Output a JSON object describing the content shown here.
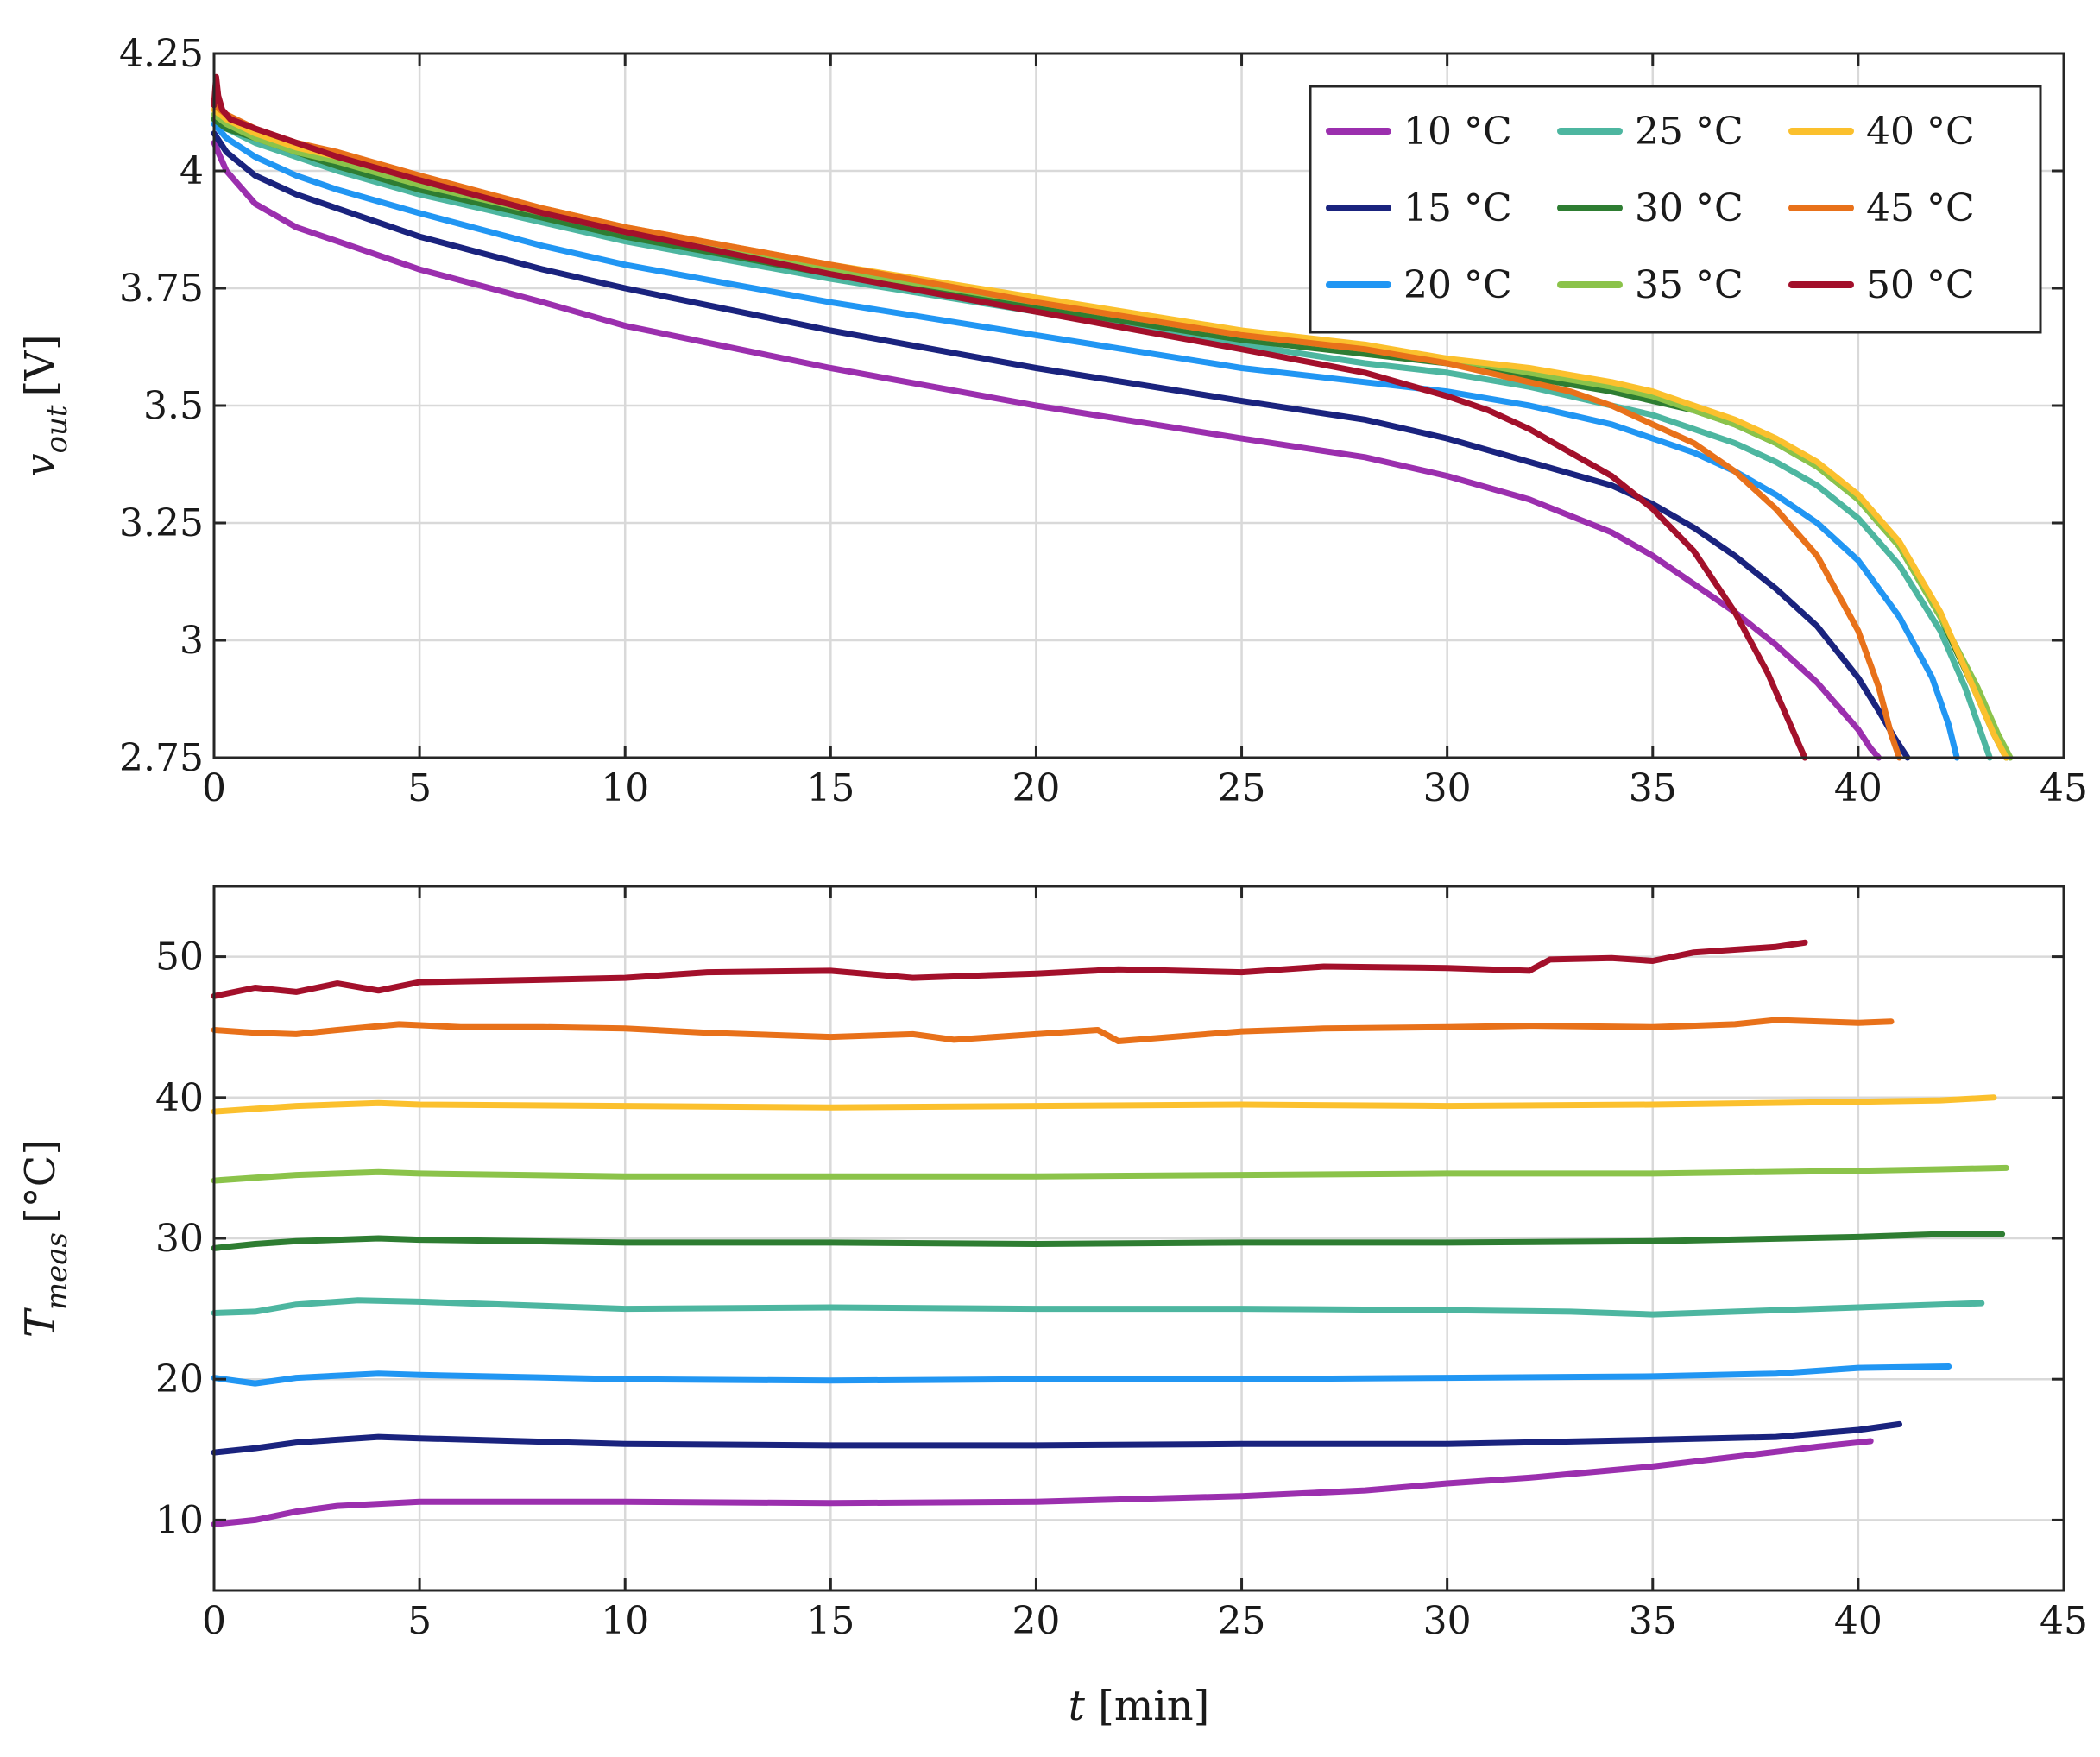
{
  "chart_data": [
    {
      "type": "line",
      "id": "voltage",
      "xlabel": "t [min]",
      "ylabel": "v_out [V]",
      "ylabel_main": "v",
      "ylabel_sub": "out",
      "ylabel_unit": "[V]",
      "xlim": [
        0,
        45
      ],
      "ylim": [
        2.75,
        4.25
      ],
      "xticks": [
        0,
        5,
        10,
        15,
        20,
        25,
        30,
        35,
        40,
        45
      ],
      "xtick_labels": [
        "0",
        "5",
        "10",
        "15",
        "20",
        "25",
        "30",
        "35",
        "40",
        "45"
      ],
      "yticks": [
        2.75,
        3.0,
        3.25,
        3.5,
        3.75,
        4.0,
        4.25
      ],
      "ytick_labels": [
        "2.75",
        "3",
        "3.25",
        "3.5",
        "3.75",
        "4",
        "4.25"
      ],
      "grid": true,
      "legend": {
        "position": "top-right",
        "columns": 3,
        "entries": [
          "10 °C",
          "15 °C",
          "20 °C",
          "25 °C",
          "30 °C",
          "35 °C",
          "40 °C",
          "45 °C",
          "50 °C"
        ]
      },
      "series": [
        {
          "name": "10 °C",
          "color": "#9B2FAE",
          "x": [
            0,
            0.3,
            1,
            2,
            3,
            5,
            8,
            10,
            15,
            20,
            25,
            28,
            30,
            32,
            34,
            35,
            36,
            37,
            38,
            39,
            39.5,
            40,
            40.3,
            40.5
          ],
          "y": [
            4.06,
            4.0,
            3.93,
            3.88,
            3.85,
            3.79,
            3.72,
            3.67,
            3.58,
            3.5,
            3.43,
            3.39,
            3.35,
            3.3,
            3.23,
            3.18,
            3.12,
            3.06,
            2.99,
            2.91,
            2.86,
            2.81,
            2.77,
            2.75
          ]
        },
        {
          "name": "15 °C",
          "color": "#1A237E",
          "x": [
            0,
            0.3,
            1,
            2,
            3,
            5,
            8,
            10,
            15,
            20,
            25,
            28,
            30,
            32,
            34,
            35,
            36,
            37,
            38,
            39,
            40,
            40.5,
            40.9,
            41.2
          ],
          "y": [
            4.08,
            4.04,
            3.99,
            3.95,
            3.92,
            3.86,
            3.79,
            3.75,
            3.66,
            3.58,
            3.51,
            3.47,
            3.43,
            3.38,
            3.33,
            3.29,
            3.24,
            3.18,
            3.11,
            3.03,
            2.92,
            2.85,
            2.79,
            2.75
          ]
        },
        {
          "name": "20 °C",
          "color": "#2196F3",
          "x": [
            0,
            0.3,
            1,
            2,
            3,
            5,
            8,
            10,
            15,
            20,
            25,
            28,
            30,
            32,
            34,
            35,
            36,
            37,
            38,
            39,
            40,
            41,
            41.8,
            42.2,
            42.4
          ],
          "y": [
            4.1,
            4.07,
            4.03,
            3.99,
            3.96,
            3.91,
            3.84,
            3.8,
            3.72,
            3.65,
            3.58,
            3.55,
            3.53,
            3.5,
            3.46,
            3.43,
            3.4,
            3.36,
            3.31,
            3.25,
            3.17,
            3.05,
            2.92,
            2.82,
            2.75
          ]
        },
        {
          "name": "25 °C",
          "color": "#4DB6A0",
          "x": [
            0,
            0.3,
            1,
            2,
            3,
            5,
            8,
            10,
            15,
            20,
            25,
            28,
            30,
            32,
            34,
            35,
            36,
            37,
            38,
            39,
            40,
            41,
            42,
            42.6,
            43.0,
            43.2
          ],
          "y": [
            4.11,
            4.09,
            4.06,
            4.03,
            4.0,
            3.95,
            3.89,
            3.85,
            3.77,
            3.7,
            3.63,
            3.59,
            3.57,
            3.54,
            3.5,
            3.48,
            3.45,
            3.42,
            3.38,
            3.33,
            3.26,
            3.16,
            3.02,
            2.9,
            2.8,
            2.75
          ]
        },
        {
          "name": "30 °C",
          "color": "#2E7D32",
          "x": [
            0,
            0.3,
            1,
            2,
            3,
            5,
            8,
            10,
            15,
            20,
            25,
            28,
            30,
            32,
            34,
            35,
            36,
            37,
            38,
            39,
            40,
            41,
            42,
            42.8,
            43.3,
            43.6
          ],
          "y": [
            4.11,
            4.09,
            4.07,
            4.04,
            4.01,
            3.96,
            3.9,
            3.86,
            3.78,
            3.71,
            3.64,
            3.61,
            3.59,
            3.56,
            3.53,
            3.51,
            3.49,
            3.46,
            3.42,
            3.37,
            3.3,
            3.2,
            3.05,
            2.9,
            2.8,
            2.75
          ]
        },
        {
          "name": "35 °C",
          "color": "#8BC34A",
          "x": [
            0,
            0.3,
            1,
            2,
            3,
            5,
            8,
            10,
            15,
            20,
            25,
            28,
            30,
            32,
            34,
            35,
            36,
            37,
            38,
            39,
            40,
            41,
            42,
            42.9,
            43.4,
            43.7
          ],
          "y": [
            4.12,
            4.1,
            4.07,
            4.04,
            4.02,
            3.97,
            3.91,
            3.87,
            3.79,
            3.72,
            3.65,
            3.62,
            3.6,
            3.57,
            3.54,
            3.52,
            3.49,
            3.46,
            3.42,
            3.37,
            3.3,
            3.2,
            3.05,
            2.9,
            2.8,
            2.75
          ]
        },
        {
          "name": "40 °C",
          "color": "#FBC02D",
          "x": [
            0,
            0.3,
            1,
            2,
            3,
            5,
            8,
            10,
            15,
            20,
            25,
            28,
            30,
            32,
            34,
            35,
            36,
            37,
            38,
            39,
            40,
            41,
            42,
            42.8,
            43.3,
            43.6
          ],
          "y": [
            4.13,
            4.11,
            4.08,
            4.05,
            4.03,
            3.98,
            3.92,
            3.88,
            3.8,
            3.73,
            3.66,
            3.63,
            3.6,
            3.58,
            3.55,
            3.53,
            3.5,
            3.47,
            3.43,
            3.38,
            3.31,
            3.21,
            3.06,
            2.9,
            2.8,
            2.75
          ]
        },
        {
          "name": "45 °C",
          "color": "#E8711A",
          "x": [
            0,
            0.3,
            1,
            2,
            3,
            5,
            8,
            10,
            15,
            20,
            25,
            28,
            30,
            32,
            33,
            34,
            35,
            36,
            37,
            38,
            39,
            40,
            40.5,
            40.8,
            41.0
          ],
          "y": [
            4.14,
            4.12,
            4.09,
            4.06,
            4.04,
            3.99,
            3.92,
            3.88,
            3.8,
            3.72,
            3.65,
            3.62,
            3.59,
            3.55,
            3.53,
            3.5,
            3.46,
            3.42,
            3.36,
            3.28,
            3.18,
            3.02,
            2.9,
            2.8,
            2.75
          ]
        },
        {
          "name": "50 °C",
          "color": "#A3102B",
          "x": [
            0,
            0.05,
            0.1,
            0.2,
            0.4,
            1,
            2,
            3,
            5,
            8,
            10,
            15,
            20,
            25,
            28,
            30,
            31,
            32,
            33,
            34,
            35,
            36,
            37,
            37.8,
            38.3,
            38.7
          ],
          "y": [
            4.14,
            4.2,
            4.16,
            4.13,
            4.11,
            4.09,
            4.06,
            4.03,
            3.98,
            3.91,
            3.87,
            3.78,
            3.7,
            3.62,
            3.57,
            3.52,
            3.49,
            3.45,
            3.4,
            3.35,
            3.28,
            3.19,
            3.06,
            2.93,
            2.83,
            2.75
          ]
        }
      ]
    },
    {
      "type": "line",
      "id": "temperature",
      "xlabel": "t [min]",
      "ylabel": "T_meas [°C]",
      "ylabel_main": "T",
      "ylabel_sub": "meas",
      "ylabel_unit": "[°C]",
      "xlim": [
        0,
        45
      ],
      "ylim": [
        5,
        55
      ],
      "xticks": [
        0,
        5,
        10,
        15,
        20,
        25,
        30,
        35,
        40,
        45
      ],
      "xtick_labels": [
        "0",
        "5",
        "10",
        "15",
        "20",
        "25",
        "30",
        "35",
        "40",
        "45"
      ],
      "yticks": [
        10,
        20,
        30,
        40,
        50
      ],
      "ytick_labels": [
        "10",
        "20",
        "30",
        "40",
        "50"
      ],
      "grid": true,
      "series": [
        {
          "name": "10 °C",
          "color": "#9B2FAE",
          "x": [
            0,
            1,
            2,
            3,
            5,
            10,
            15,
            20,
            25,
            28,
            30,
            32,
            35,
            37,
            39,
            40.3
          ],
          "y": [
            9.7,
            10.0,
            10.6,
            11.0,
            11.3,
            11.3,
            11.2,
            11.3,
            11.7,
            12.1,
            12.6,
            13.0,
            13.8,
            14.5,
            15.2,
            15.6
          ]
        },
        {
          "name": "15 °C",
          "color": "#1A237E",
          "x": [
            0,
            1,
            2,
            4,
            5,
            10,
            15,
            20,
            25,
            30,
            35,
            38,
            40,
            41.0
          ],
          "y": [
            14.8,
            15.1,
            15.5,
            15.9,
            15.8,
            15.4,
            15.3,
            15.3,
            15.4,
            15.4,
            15.7,
            15.9,
            16.4,
            16.8
          ]
        },
        {
          "name": "20 °C",
          "color": "#2196F3",
          "x": [
            0,
            1,
            2,
            4,
            5,
            10,
            15,
            20,
            25,
            30,
            35,
            38,
            40,
            42.2
          ],
          "y": [
            20.1,
            19.7,
            20.1,
            20.4,
            20.3,
            20.0,
            19.9,
            20.0,
            20.0,
            20.1,
            20.2,
            20.4,
            20.8,
            20.9
          ]
        },
        {
          "name": "25 °C",
          "color": "#4DB6A0",
          "x": [
            0,
            1,
            2,
            3.5,
            5,
            10,
            15,
            20,
            25,
            30,
            33,
            35,
            37,
            40,
            43.0
          ],
          "y": [
            24.7,
            24.8,
            25.3,
            25.6,
            25.5,
            25.0,
            25.1,
            25.0,
            25.0,
            24.9,
            24.8,
            24.6,
            24.8,
            25.1,
            25.4
          ]
        },
        {
          "name": "30 °C",
          "color": "#2E7D32",
          "x": [
            0,
            1,
            2,
            4,
            5,
            10,
            15,
            20,
            25,
            30,
            35,
            40,
            42,
            43.5
          ],
          "y": [
            29.3,
            29.6,
            29.8,
            30.0,
            29.9,
            29.7,
            29.7,
            29.6,
            29.7,
            29.7,
            29.8,
            30.1,
            30.3,
            30.3
          ]
        },
        {
          "name": "35 °C",
          "color": "#8BC34A",
          "x": [
            0,
            1,
            2,
            4,
            5,
            10,
            15,
            20,
            25,
            30,
            35,
            40,
            42,
            43.6
          ],
          "y": [
            34.1,
            34.3,
            34.5,
            34.7,
            34.6,
            34.4,
            34.4,
            34.4,
            34.5,
            34.6,
            34.6,
            34.8,
            34.9,
            35.0
          ]
        },
        {
          "name": "40 °C",
          "color": "#FBC02D",
          "x": [
            0,
            1,
            2,
            4,
            5,
            10,
            15,
            20,
            25,
            30,
            35,
            40,
            42,
            43.3
          ],
          "y": [
            39.0,
            39.2,
            39.4,
            39.6,
            39.5,
            39.4,
            39.3,
            39.4,
            39.5,
            39.4,
            39.5,
            39.7,
            39.8,
            40.0
          ]
        },
        {
          "name": "45 °C",
          "color": "#E8711A",
          "x": [
            0,
            1,
            2,
            3,
            4.5,
            6,
            8,
            10,
            12,
            15,
            17,
            18,
            20,
            21.5,
            22,
            25,
            27,
            30,
            32,
            35,
            37,
            38,
            40,
            40.8
          ],
          "y": [
            44.8,
            44.6,
            44.5,
            44.8,
            45.2,
            45.0,
            45.0,
            44.9,
            44.6,
            44.3,
            44.5,
            44.1,
            44.5,
            44.8,
            44.0,
            44.7,
            44.9,
            45.0,
            45.1,
            45.0,
            45.2,
            45.5,
            45.3,
            45.4
          ]
        },
        {
          "name": "50 °C",
          "color": "#A3102B",
          "x": [
            0,
            1,
            2,
            3,
            4,
            5,
            7,
            10,
            12,
            15,
            17,
            20,
            22,
            25,
            27,
            30,
            32,
            32.5,
            34,
            35,
            36,
            38,
            38.7
          ],
          "y": [
            47.2,
            47.8,
            47.5,
            48.1,
            47.6,
            48.2,
            48.3,
            48.5,
            48.9,
            49.0,
            48.5,
            48.8,
            49.1,
            48.9,
            49.3,
            49.2,
            49.0,
            49.8,
            49.9,
            49.7,
            50.3,
            50.7,
            51.0
          ]
        }
      ]
    }
  ]
}
